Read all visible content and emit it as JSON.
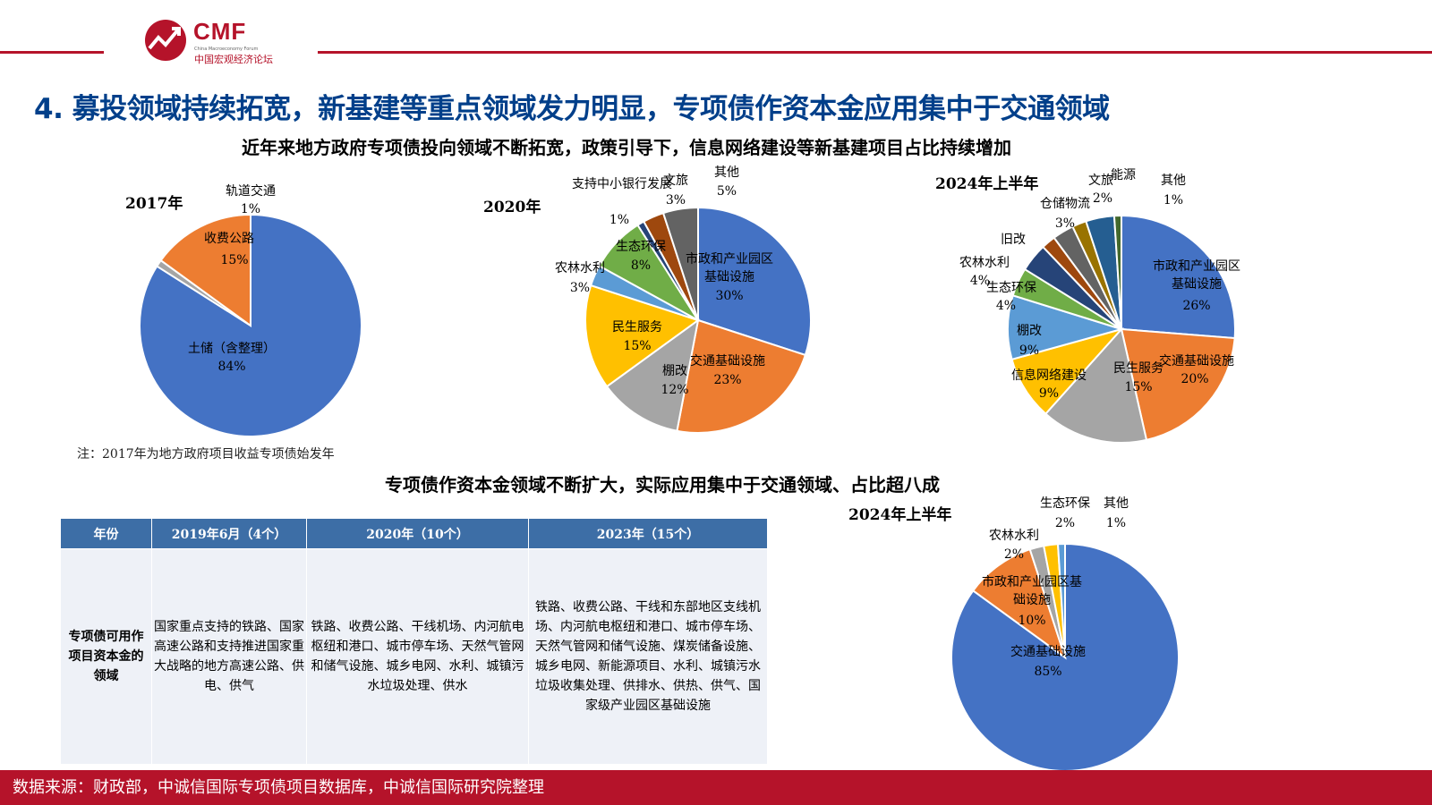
{
  "logo": {
    "brand": "CMF",
    "subtitle": "China Macroeconomy Forum",
    "cn_name": "中国宏观经济论坛"
  },
  "colors": {
    "accent": "#b5132a",
    "title": "#003f8a",
    "table_header": "#3d6ea6"
  },
  "title": "4. 募投领域持续拓宽，新基建等重点领域发力明显，专项债作资本金应用集中于交通领域",
  "section1_heading": "近年来地方政府专项债投向领域不断拓宽，政策引导下，信息网络建设等新基建项目占比持续增加",
  "section2_heading": "专项债作资本金领域不断扩大，实际应用集中于交通领域、占比超八成",
  "note": "注：2017年为地方政府项目收益专项债始发年",
  "chart_data": [
    {
      "type": "pie",
      "title": "2017年",
      "slices": [
        {
          "label": "土储（含整理）",
          "value": 84,
          "text": "84%",
          "color": "#4472c4"
        },
        {
          "label": "轨道交通",
          "value": 1,
          "text": "1%",
          "color": "#a5a5a5"
        },
        {
          "label": "收费公路",
          "value": 15,
          "text": "15%",
          "color": "#ed7d31"
        }
      ]
    },
    {
      "type": "pie",
      "title": "2020年",
      "slices": [
        {
          "label": "市政和产业园区基础设施",
          "value": 30,
          "text": "30%",
          "color": "#4472c4"
        },
        {
          "label": "交通基础设施",
          "value": 23,
          "text": "23%",
          "color": "#ed7d31"
        },
        {
          "label": "棚改",
          "value": 12,
          "text": "12%",
          "color": "#a5a5a5"
        },
        {
          "label": "民生服务",
          "value": 15,
          "text": "15%",
          "color": "#ffc000"
        },
        {
          "label": "农林水利",
          "value": 3,
          "text": "3%",
          "color": "#5b9bd5"
        },
        {
          "label": "生态环保",
          "value": 8,
          "text": "8%",
          "color": "#70ad47"
        },
        {
          "label": "支持中小银行发展",
          "value": 1,
          "text": "1%",
          "color": "#264478"
        },
        {
          "label": "文旅",
          "value": 3,
          "text": "3%",
          "color": "#9e480e"
        },
        {
          "label": "其他",
          "value": 5,
          "text": "5%",
          "color": "#636363"
        }
      ]
    },
    {
      "type": "pie",
      "title": "2024年上半年",
      "slices": [
        {
          "label": "市政和产业园区基础设施",
          "value": 26,
          "text": "26%",
          "color": "#4472c4"
        },
        {
          "label": "交通基础设施",
          "value": 20,
          "text": "20%",
          "color": "#ed7d31"
        },
        {
          "label": "民生服务",
          "value": 15,
          "text": "15%",
          "color": "#a5a5a5"
        },
        {
          "label": "信息网络建设",
          "value": 9,
          "text": "9%",
          "color": "#ffc000"
        },
        {
          "label": "棚改",
          "value": 9,
          "text": "9%",
          "color": "#5b9bd5"
        },
        {
          "label": "生态环保",
          "value": 4,
          "text": "4%",
          "color": "#70ad47"
        },
        {
          "label": "农林水利",
          "value": 4,
          "text": "4%",
          "color": "#264478"
        },
        {
          "label": "旧改",
          "value": 2,
          "text": "",
          "color": "#9e480e"
        },
        {
          "label": "仓储物流",
          "value": 3,
          "text": "3%",
          "color": "#636363"
        },
        {
          "label": "文旅",
          "value": 2,
          "text": "2%",
          "color": "#997300"
        },
        {
          "label": "能源",
          "value": 4,
          "text": "",
          "color": "#255e91"
        },
        {
          "label": "其他",
          "value": 1,
          "text": "1%",
          "color": "#43682b"
        }
      ]
    },
    {
      "type": "pie",
      "title": "2024年上半年",
      "slices": [
        {
          "label": "交通基础设施",
          "value": 85,
          "text": "85%",
          "color": "#4472c4"
        },
        {
          "label": "市政和产业园区基础设施",
          "value": 10,
          "text": "10%",
          "color": "#ed7d31"
        },
        {
          "label": "农林水利",
          "value": 2,
          "text": "2%",
          "color": "#a5a5a5"
        },
        {
          "label": "生态环保",
          "value": 2,
          "text": "2%",
          "color": "#ffc000"
        },
        {
          "label": "其他",
          "value": 1,
          "text": "1%",
          "color": "#5b9bd5"
        }
      ]
    }
  ],
  "table": {
    "headers": [
      "年份",
      "2019年6月（4个）",
      "2020年（10个）",
      "2023年（15个）"
    ],
    "row_header": "专项债可用作项目资本金的领域",
    "cells": [
      "国家重点支持的铁路、国家高速公路和支持推进国家重大战略的地方高速公路、供电、供气",
      "铁路、收费公路、干线机场、内河航电枢纽和港口、城市停车场、天然气管网和储气设施、城乡电网、水利、城镇污水垃圾处理、供水",
      "铁路、收费公路、干线和东部地区支线机场、内河航电枢纽和港口、城市停车场、天然气管网和储气设施、煤炭储备设施、城乡电网、新能源项目、水利、城镇污水垃圾收集处理、供排水、供热、供气、国家级产业园区基础设施"
    ]
  },
  "footer": "数据来源：财政部，中诚信国际专项债项目数据库，中诚信国际研究院整理"
}
